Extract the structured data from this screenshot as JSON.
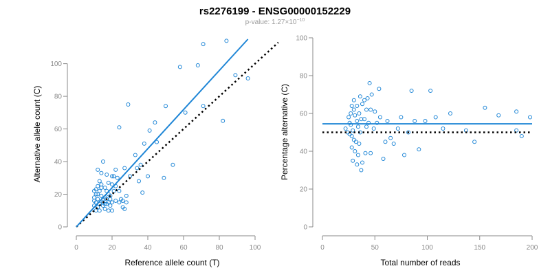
{
  "title": "rs2276199 - ENSG00000152229",
  "subtitle": {
    "prefix": "p-value: 1.27×10",
    "exponent": "−10"
  },
  "colors": {
    "points": "#1f86d6",
    "fit": "#1f86d6",
    "reference": "#000000",
    "axis": "#8a8a8a"
  },
  "chart_data": [
    {
      "type": "scatter",
      "xlabel": "Reference allele count (T)",
      "ylabel": "Alternative allele count (C)",
      "xlim": [
        0,
        115
      ],
      "ylim": [
        0,
        115
      ],
      "xticks": [
        0,
        20,
        40,
        60,
        80,
        100
      ],
      "yticks": [
        0,
        20,
        40,
        60,
        80,
        100
      ],
      "grid": false,
      "fit_line": {
        "x": [
          0,
          96
        ],
        "y": [
          0,
          115
        ],
        "color": "#1f86d6",
        "style": "solid"
      },
      "reference_line": {
        "x": [
          0,
          113
        ],
        "y": [
          0,
          113
        ],
        "color": "#000000",
        "style": "dotted"
      },
      "points": [
        [
          84,
          114
        ],
        [
          71,
          112
        ],
        [
          68,
          99
        ],
        [
          58,
          98
        ],
        [
          96,
          91
        ],
        [
          89,
          93
        ],
        [
          29,
          75
        ],
        [
          50,
          74
        ],
        [
          71,
          74
        ],
        [
          61,
          70
        ],
        [
          82,
          65
        ],
        [
          24,
          61
        ],
        [
          44,
          64
        ],
        [
          41,
          59
        ],
        [
          38,
          51
        ],
        [
          45,
          52
        ],
        [
          33,
          44
        ],
        [
          36,
          38
        ],
        [
          54,
          38
        ],
        [
          40,
          31
        ],
        [
          35,
          28
        ],
        [
          34,
          36
        ],
        [
          37,
          21
        ],
        [
          27,
          36
        ],
        [
          49,
          30
        ],
        [
          30,
          31
        ],
        [
          28,
          19
        ],
        [
          28,
          15
        ],
        [
          25,
          17
        ],
        [
          26,
          12
        ],
        [
          27,
          11
        ],
        [
          24,
          15
        ],
        [
          22,
          35
        ],
        [
          20,
          31
        ],
        [
          17,
          32
        ],
        [
          15,
          40
        ],
        [
          14,
          33
        ],
        [
          12,
          35
        ],
        [
          10,
          22
        ],
        [
          11,
          20
        ],
        [
          10,
          18
        ],
        [
          12,
          17
        ],
        [
          11,
          15
        ],
        [
          10,
          13
        ],
        [
          12,
          12
        ],
        [
          11,
          10
        ],
        [
          13,
          10
        ],
        [
          12,
          25
        ],
        [
          13,
          22
        ],
        [
          14,
          19
        ],
        [
          15,
          17
        ],
        [
          13,
          14
        ],
        [
          15,
          13
        ],
        [
          16,
          11
        ],
        [
          18,
          10
        ],
        [
          20,
          10
        ],
        [
          14,
          24
        ],
        [
          16,
          24
        ],
        [
          17,
          22
        ],
        [
          18,
          20
        ],
        [
          19,
          19
        ],
        [
          17,
          14
        ],
        [
          19,
          13
        ],
        [
          20,
          15
        ],
        [
          21,
          22
        ],
        [
          22,
          25
        ],
        [
          20,
          26
        ],
        [
          15,
          15
        ],
        [
          16,
          18
        ],
        [
          17,
          17
        ],
        [
          22,
          16
        ],
        [
          10,
          16
        ],
        [
          11,
          23
        ],
        [
          13,
          28
        ],
        [
          18,
          27
        ],
        [
          21,
          31
        ],
        [
          23,
          30
        ],
        [
          24,
          22
        ],
        [
          14,
          26
        ],
        [
          16,
          14
        ],
        [
          18,
          15
        ],
        [
          19,
          17
        ],
        [
          12,
          20
        ],
        [
          26,
          16
        ]
      ]
    },
    {
      "type": "scatter",
      "xlabel": "Total number of reads",
      "ylabel": "Percentage alternative (C)",
      "xlim": [
        0,
        200
      ],
      "ylim": [
        0,
        100
      ],
      "xticks": [
        0,
        50,
        100,
        150,
        200
      ],
      "yticks": [
        0,
        20,
        40,
        60,
        80,
        100
      ],
      "grid": false,
      "fit_line": {
        "x": [
          0,
          200
        ],
        "y": [
          54.5,
          54.5
        ],
        "color": "#1f86d6",
        "style": "solid"
      },
      "reference_line": {
        "x": [
          0,
          200
        ],
        "y": [
          50,
          50
        ],
        "color": "#000000",
        "style": "dotted"
      },
      "points": [
        [
          45,
          76
        ],
        [
          54,
          73
        ],
        [
          85,
          72
        ],
        [
          103,
          72
        ],
        [
          47,
          70
        ],
        [
          43,
          68
        ],
        [
          36,
          69
        ],
        [
          40,
          67
        ],
        [
          30,
          67
        ],
        [
          28,
          64
        ],
        [
          33,
          64
        ],
        [
          38,
          65
        ],
        [
          46,
          62
        ],
        [
          42,
          62
        ],
        [
          50,
          61
        ],
        [
          35,
          60
        ],
        [
          31,
          59
        ],
        [
          25,
          58
        ],
        [
          37,
          57
        ],
        [
          44,
          55
        ],
        [
          52,
          55
        ],
        [
          27,
          54
        ],
        [
          34,
          53
        ],
        [
          29,
          51
        ],
        [
          24,
          50
        ],
        [
          26,
          49
        ],
        [
          30,
          46
        ],
        [
          32,
          45
        ],
        [
          35,
          44
        ],
        [
          28,
          42
        ],
        [
          31,
          40
        ],
        [
          34,
          38
        ],
        [
          41,
          39
        ],
        [
          46,
          39
        ],
        [
          29,
          35
        ],
        [
          38,
          34
        ],
        [
          33,
          33
        ],
        [
          37,
          30
        ],
        [
          55,
          58
        ],
        [
          62,
          56
        ],
        [
          75,
          58
        ],
        [
          88,
          56
        ],
        [
          98,
          56
        ],
        [
          108,
          58
        ],
        [
          122,
          60
        ],
        [
          155,
          63
        ],
        [
          168,
          59
        ],
        [
          185,
          61
        ],
        [
          198,
          58
        ],
        [
          60,
          45
        ],
        [
          68,
          44
        ],
        [
          78,
          38
        ],
        [
          92,
          41
        ],
        [
          145,
          45
        ],
        [
          185,
          51
        ],
        [
          190,
          48
        ],
        [
          58,
          36
        ],
        [
          72,
          52
        ],
        [
          82,
          50
        ],
        [
          115,
          52
        ],
        [
          137,
          51
        ],
        [
          65,
          47
        ],
        [
          49,
          52
        ],
        [
          40,
          57
        ],
        [
          26,
          55
        ],
        [
          22,
          52
        ],
        [
          28,
          48
        ],
        [
          36,
          50
        ],
        [
          42,
          53
        ],
        [
          30,
          62
        ],
        [
          33,
          56
        ],
        [
          27,
          60
        ]
      ]
    }
  ]
}
